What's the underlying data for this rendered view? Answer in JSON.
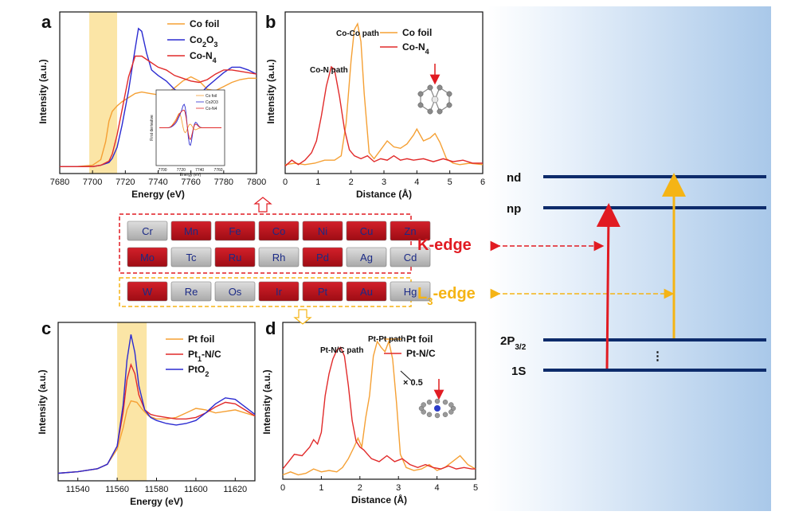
{
  "colors": {
    "orange": "#f5a034",
    "blue": "#2b2bd1",
    "red": "#e12a2a",
    "band": "#fbe5a6",
    "navy": "#0d2b6b",
    "kedge": "#e11b22",
    "ledge": "#f5b415",
    "red_cell": "#b9101a",
    "grey_cell": "#c4c4c4"
  },
  "chart_data": [
    {
      "panel": "a",
      "type": "line",
      "xlabel": "Energy (eV)",
      "ylabel": "Intensity (a.u.)",
      "xlim": [
        7680,
        7800
      ],
      "xticks": [
        7680,
        7700,
        7720,
        7740,
        7760,
        7780,
        7800
      ],
      "highlight": [
        7698,
        7715
      ],
      "legend_position": "top-right",
      "series": [
        {
          "name": "Co foil",
          "color": "orange",
          "x": [
            7680,
            7690,
            7700,
            7705,
            7708,
            7710,
            7712,
            7715,
            7718,
            7722,
            7726,
            7730,
            7735,
            7740,
            7745,
            7750,
            7755,
            7760,
            7765,
            7770,
            7775,
            7780,
            7785,
            7790,
            7795,
            7800
          ],
          "y": [
            0,
            0,
            0.01,
            0.05,
            0.18,
            0.33,
            0.4,
            0.44,
            0.47,
            0.5,
            0.53,
            0.54,
            0.53,
            0.52,
            0.53,
            0.57,
            0.62,
            0.65,
            0.62,
            0.56,
            0.55,
            0.58,
            0.61,
            0.63,
            0.64,
            0.64
          ]
        },
        {
          "name": "Co<sub>2</sub>O<sub>3</sub>",
          "legend": "Co2O3",
          "color": "blue",
          "x": [
            7680,
            7690,
            7700,
            7705,
            7710,
            7712,
            7715,
            7718,
            7722,
            7725,
            7728,
            7730,
            7733,
            7736,
            7740,
            7745,
            7750,
            7755,
            7760,
            7765,
            7770,
            7775,
            7780,
            7785,
            7790,
            7795,
            7800
          ],
          "y": [
            0,
            0,
            0,
            0.01,
            0.03,
            0.06,
            0.14,
            0.3,
            0.55,
            0.78,
            1.0,
            0.98,
            0.82,
            0.7,
            0.66,
            0.62,
            0.56,
            0.52,
            0.5,
            0.52,
            0.58,
            0.63,
            0.68,
            0.72,
            0.72,
            0.7,
            0.67
          ]
        },
        {
          "name": "Co-N4",
          "legend": "Co-N4",
          "color": "red",
          "x": [
            7680,
            7690,
            7700,
            7705,
            7710,
            7712,
            7715,
            7718,
            7722,
            7726,
            7730,
            7735,
            7740,
            7745,
            7750,
            7755,
            7760,
            7765,
            7770,
            7775,
            7780,
            7785,
            7790,
            7795,
            7800
          ],
          "y": [
            0,
            0,
            0,
            0.01,
            0.04,
            0.09,
            0.23,
            0.41,
            0.65,
            0.8,
            0.8,
            0.76,
            0.72,
            0.7,
            0.66,
            0.64,
            0.62,
            0.61,
            0.63,
            0.67,
            0.7,
            0.7,
            0.69,
            0.68,
            0.67
          ]
        }
      ],
      "inset": {
        "ylabel": "First derivative",
        "xlabel": "Energy (eV)",
        "xticks": [
          7700,
          7720,
          7740,
          7760
        ],
        "legend": [
          "Co foil",
          "Co2O3",
          "Co-N4"
        ]
      }
    },
    {
      "panel": "b",
      "type": "line",
      "xlabel": "Distance (Å)",
      "ylabel": "Intensity (a.u.)",
      "xlim": [
        0,
        6
      ],
      "xticks": [
        0,
        1,
        2,
        3,
        4,
        5,
        6
      ],
      "legend_position": "top-right",
      "annotations": [
        "Co-Co path",
        "Co-N path"
      ],
      "series": [
        {
          "name": "Co foil",
          "color": "orange",
          "x": [
            0,
            0.3,
            0.6,
            0.9,
            1.2,
            1.5,
            1.7,
            1.85,
            2.0,
            2.1,
            2.2,
            2.3,
            2.4,
            2.55,
            2.7,
            2.9,
            3.1,
            3.3,
            3.5,
            3.7,
            3.9,
            4.0,
            4.2,
            4.4,
            4.55,
            4.7,
            4.9,
            5.1,
            5.3,
            5.6,
            6.0
          ],
          "y": [
            0.02,
            0.03,
            0.02,
            0.03,
            0.05,
            0.05,
            0.08,
            0.3,
            0.72,
            0.93,
            0.97,
            0.85,
            0.5,
            0.1,
            0.06,
            0.12,
            0.18,
            0.14,
            0.13,
            0.16,
            0.22,
            0.26,
            0.18,
            0.2,
            0.23,
            0.17,
            0.06,
            0.03,
            0.02,
            0.03,
            0.02
          ]
        },
        {
          "name": "Co-N4",
          "legend": "Co-N4",
          "color": "red",
          "x": [
            0,
            0.2,
            0.4,
            0.6,
            0.8,
            0.95,
            1.1,
            1.25,
            1.4,
            1.5,
            1.65,
            1.8,
            1.95,
            2.1,
            2.3,
            2.5,
            2.7,
            2.9,
            3.1,
            3.3,
            3.5,
            3.7,
            3.9,
            4.2,
            4.5,
            4.8,
            5.1,
            5.4,
            5.7,
            6.0
          ],
          "y": [
            0.01,
            0.05,
            0.02,
            0.05,
            0.1,
            0.18,
            0.35,
            0.55,
            0.68,
            0.66,
            0.48,
            0.26,
            0.12,
            0.08,
            0.06,
            0.08,
            0.04,
            0.06,
            0.05,
            0.08,
            0.05,
            0.06,
            0.05,
            0.06,
            0.04,
            0.06,
            0.04,
            0.05,
            0.03,
            0.03
          ]
        }
      ]
    },
    {
      "panel": "c",
      "type": "line",
      "xlabel": "Energy (eV)",
      "ylabel": "Intensity (a.u.)",
      "xlim": [
        11530,
        11630
      ],
      "xticks": [
        11540,
        11560,
        11580,
        11600,
        11620
      ],
      "highlight": [
        11560,
        11575
      ],
      "legend_position": "top-right",
      "series": [
        {
          "name": "Pt foil",
          "color": "orange",
          "x": [
            11530,
            11540,
            11550,
            11555,
            11560,
            11563,
            11565,
            11567,
            11570,
            11573,
            11576,
            11580,
            11585,
            11590,
            11595,
            11600,
            11605,
            11610,
            11615,
            11620,
            11625,
            11630
          ],
          "y": [
            0,
            0.01,
            0.03,
            0.06,
            0.16,
            0.3,
            0.42,
            0.48,
            0.47,
            0.42,
            0.38,
            0.36,
            0.36,
            0.37,
            0.4,
            0.43,
            0.42,
            0.4,
            0.41,
            0.42,
            0.4,
            0.38
          ]
        },
        {
          "name": "Pt1-N/C",
          "legend": "Pt1-N/C",
          "color": "red",
          "x": [
            11530,
            11540,
            11550,
            11555,
            11560,
            11563,
            11565,
            11567,
            11569,
            11571,
            11574,
            11577,
            11580,
            11585,
            11590,
            11595,
            11600,
            11605,
            11610,
            11615,
            11620,
            11625,
            11630
          ],
          "y": [
            0,
            0.01,
            0.03,
            0.06,
            0.18,
            0.4,
            0.62,
            0.72,
            0.66,
            0.52,
            0.42,
            0.39,
            0.38,
            0.37,
            0.36,
            0.36,
            0.37,
            0.4,
            0.44,
            0.47,
            0.46,
            0.42,
            0.38
          ]
        },
        {
          "name": "PtO2",
          "legend": "PtO2",
          "color": "blue",
          "x": [
            11530,
            11540,
            11550,
            11555,
            11560,
            11563,
            11565,
            11567,
            11569,
            11571,
            11574,
            11577,
            11580,
            11585,
            11590,
            11595,
            11600,
            11605,
            11610,
            11615,
            11620,
            11625,
            11630
          ],
          "y": [
            0,
            0.01,
            0.03,
            0.06,
            0.18,
            0.45,
            0.75,
            0.92,
            0.8,
            0.58,
            0.42,
            0.37,
            0.35,
            0.33,
            0.32,
            0.33,
            0.35,
            0.4,
            0.46,
            0.5,
            0.49,
            0.44,
            0.39
          ]
        }
      ]
    },
    {
      "panel": "d",
      "type": "line",
      "xlabel": "Distance (Å)",
      "ylabel": "Intensity (a.u.)",
      "xlim": [
        0,
        5
      ],
      "xticks": [
        0,
        1,
        2,
        3,
        4,
        5
      ],
      "legend_position": "top-right",
      "annotations": [
        "Pt-Pt path",
        "Pt-N/C path",
        "× 0.5"
      ],
      "series": [
        {
          "name": "Pt foil",
          "color": "orange",
          "x": [
            0,
            0.2,
            0.4,
            0.6,
            0.8,
            1.0,
            1.2,
            1.4,
            1.55,
            1.7,
            1.85,
            1.95,
            2.05,
            2.15,
            2.25,
            2.35,
            2.45,
            2.55,
            2.65,
            2.75,
            2.85,
            2.95,
            3.05,
            3.2,
            3.4,
            3.6,
            3.8,
            4.0,
            4.2,
            4.4,
            4.6,
            4.8,
            5.0
          ],
          "y": [
            0.01,
            0.03,
            0.01,
            0.02,
            0.05,
            0.03,
            0.04,
            0.03,
            0.06,
            0.12,
            0.2,
            0.26,
            0.2,
            0.4,
            0.55,
            0.82,
            0.92,
            0.88,
            0.85,
            0.92,
            0.8,
            0.5,
            0.15,
            0.06,
            0.04,
            0.05,
            0.08,
            0.04,
            0.06,
            0.1,
            0.14,
            0.08,
            0.05
          ]
        },
        {
          "name": "Pt-N/C",
          "legend": "Pt-N/C",
          "color": "red",
          "x": [
            0,
            0.15,
            0.3,
            0.5,
            0.7,
            0.8,
            0.9,
            1.0,
            1.1,
            1.2,
            1.3,
            1.4,
            1.5,
            1.6,
            1.7,
            1.8,
            1.9,
            2.0,
            2.1,
            2.3,
            2.5,
            2.7,
            2.9,
            3.1,
            3.3,
            3.5,
            3.7,
            3.9,
            4.1,
            4.3,
            4.5,
            4.7,
            4.9,
            5.0
          ],
          "y": [
            0.05,
            0.1,
            0.15,
            0.14,
            0.2,
            0.25,
            0.22,
            0.3,
            0.55,
            0.7,
            0.8,
            0.86,
            0.88,
            0.82,
            0.62,
            0.38,
            0.24,
            0.2,
            0.18,
            0.12,
            0.1,
            0.14,
            0.1,
            0.12,
            0.08,
            0.06,
            0.08,
            0.06,
            0.05,
            0.07,
            0.05,
            0.06,
            0.05,
            0.05
          ]
        }
      ]
    }
  ],
  "periodic": {
    "k_rows": [
      [
        {
          "s": "Cr",
          "c": "grey"
        },
        {
          "s": "Mn",
          "c": "red"
        },
        {
          "s": "Fe",
          "c": "red"
        },
        {
          "s": "Co",
          "c": "red"
        },
        {
          "s": "Ni",
          "c": "red"
        },
        {
          "s": "Cu",
          "c": "red"
        },
        {
          "s": "Zn",
          "c": "red"
        }
      ],
      [
        {
          "s": "Mo",
          "c": "red"
        },
        {
          "s": "Tc",
          "c": "grey"
        },
        {
          "s": "Ru",
          "c": "red"
        },
        {
          "s": "Rh",
          "c": "grey"
        },
        {
          "s": "Pd",
          "c": "red"
        },
        {
          "s": "Ag",
          "c": "grey"
        },
        {
          "s": "Cd",
          "c": "grey"
        }
      ]
    ],
    "l_rows": [
      [
        {
          "s": "W",
          "c": "red"
        },
        {
          "s": "Re",
          "c": "grey"
        },
        {
          "s": "Os",
          "c": "grey"
        },
        {
          "s": "Ir",
          "c": "red"
        },
        {
          "s": "Pt",
          "c": "red"
        },
        {
          "s": "Au",
          "c": "red"
        },
        {
          "s": "Hg",
          "c": "grey"
        }
      ]
    ],
    "k_label": "K-edge",
    "l_label": "L",
    "l_sub": "3",
    "l_suffix": "-edge"
  },
  "levels": {
    "nd": "nd",
    "np": "np",
    "p2": "2P",
    "p2_sub": "3/2",
    "s1": "1S",
    "dots": "⋮"
  },
  "panels": {
    "a": "a",
    "b": "b",
    "c": "c",
    "d": "d"
  },
  "legends": {
    "a": [
      {
        "t": "Co foil",
        "sub": ""
      },
      {
        "t": "Co",
        "sub": "2",
        "t2": "O",
        "sub2": "3"
      },
      {
        "t": "Co-N",
        "sub": "4"
      }
    ],
    "b": [
      {
        "t": "Co foil",
        "sub": ""
      },
      {
        "t": "Co-N",
        "sub": "4"
      }
    ],
    "c": [
      {
        "t": "Pt foil",
        "sub": ""
      },
      {
        "t": "Pt",
        "sub": "1",
        "t2": "-N/C"
      },
      {
        "t": "PtO",
        "sub": "2"
      }
    ],
    "d": [
      {
        "t": "Pt foil",
        "sub": ""
      },
      {
        "t": "Pt-N/C",
        "sub": ""
      }
    ]
  }
}
